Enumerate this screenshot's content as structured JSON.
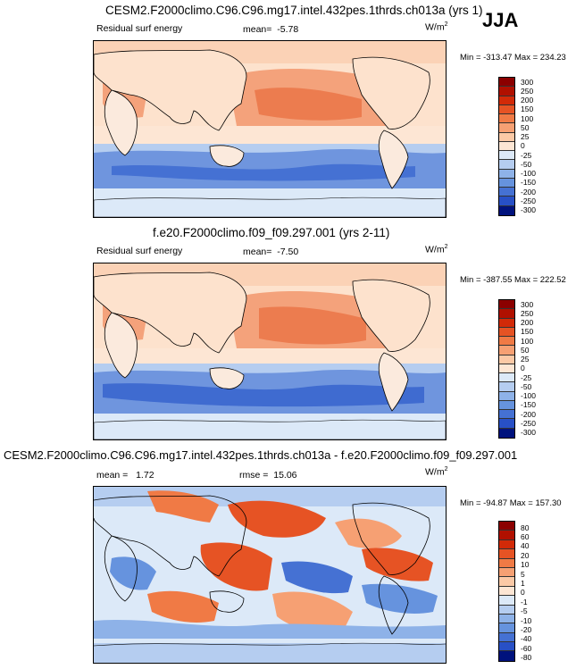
{
  "season": "JJA",
  "colors": {
    "warm": [
      "#8b0000",
      "#b01000",
      "#d22a08",
      "#e65324",
      "#f07a45",
      "#f6a073",
      "#fbc9a6",
      "#fde6d4"
    ],
    "cool": [
      "#dce9f8",
      "#b5cdf0",
      "#8eb2e8",
      "#6693de",
      "#4571d3",
      "#2850c6",
      "#1133ae",
      "#00127d"
    ],
    "neutral": "#ffffff",
    "land_top": "#fde2cd",
    "ocean_warm": "#f4a27b",
    "ocean_cool": "#6f95de"
  },
  "panels": [
    {
      "title": "CESM2.F2000climo.C96.C96.mg17.intel.432pes.1thrds.ch013a (yrs 1)",
      "left_label": "Residual surf energy",
      "stat_label": "mean=",
      "stat_value": "-5.78",
      "units": "W/m",
      "units_sup": "2",
      "minmax": "Min = -313.47 Max = 234.23",
      "levels": [
        "300",
        "250",
        "200",
        "150",
        "100",
        "50",
        "25",
        "0",
        "-25",
        "-50",
        "-100",
        "-150",
        "-200",
        "-250",
        "-300"
      ]
    },
    {
      "title": "f.e20.F2000climo.f09_f09.297.001 (yrs 2-11)",
      "left_label": "Residual surf energy",
      "stat_label": "mean=",
      "stat_value": "-7.50",
      "units": "W/m",
      "units_sup": "2",
      "minmax": "Min = -387.55 Max = 222.52",
      "levels": [
        "300",
        "250",
        "200",
        "150",
        "100",
        "50",
        "25",
        "0",
        "-25",
        "-50",
        "-100",
        "-150",
        "-200",
        "-250",
        "-300"
      ]
    },
    {
      "title": "CESM2.F2000climo.C96.C96.mg17.intel.432pes.1thrds.ch013a - f.e20.F2000climo.f09_f09.297.001",
      "mean_label": "mean =",
      "mean_value": "1.72",
      "rmse_label": "rmse =",
      "rmse_value": "15.06",
      "units": "W/m",
      "units_sup": "2",
      "minmax": "Min = -94.87 Max = 157.30",
      "levels": [
        "80",
        "60",
        "40",
        "20",
        "10",
        "5",
        "1",
        "0",
        "-1",
        "-5",
        "-10",
        "-20",
        "-40",
        "-60",
        "-80"
      ]
    }
  ]
}
